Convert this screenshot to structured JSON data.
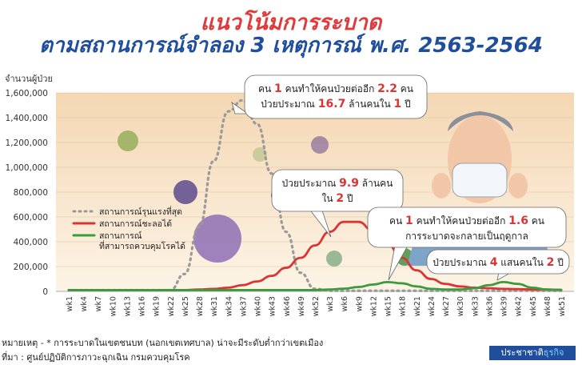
{
  "header": {
    "title_line1": "แนวโน้มการระบาด",
    "title_line2": "ตามสถานการณ์จำลอง 3 เหตุการณ์ พ.ศ. 2563-2564"
  },
  "footer": {
    "note": "หมายเหตุ - * การระบาดในเขตชนบท (นอกเขตเทศบาล) น่าจะมีระดับต่ำกว่าเขตเมือง",
    "source": "ที่มา : ศูนย์ปฏิบัติการภาวะฉุกเฉิน กรมควบคุมโรค",
    "brand_part1": "ประชาชาติ",
    "brand_part2": "ธุรกิจ"
  },
  "colors": {
    "worst": "#9a9a9a",
    "slow": "#d93535",
    "controlled": "#3c9b3c",
    "bg_top": "#f4d7b3",
    "bg_bottom": "#fdf4e6"
  },
  "chart_data": {
    "type": "line",
    "ylabel": "จำนวนผู้ป่วย",
    "ylim": [
      0,
      1600000
    ],
    "yticks": [
      0,
      200000,
      400000,
      600000,
      800000,
      1000000,
      1200000,
      1400000,
      1600000
    ],
    "ytick_labels": [
      "0",
      "200,000",
      "400,000",
      "600,000",
      "800,000",
      "1,000,000",
      "1,200,000",
      "1,400,000",
      "1,600,000"
    ],
    "categories": [
      "wk1",
      "wk4",
      "wk7",
      "wk10",
      "wk13",
      "wk16",
      "wk19",
      "wk22",
      "wk25",
      "wk28",
      "wk31",
      "wk34",
      "wk37",
      "wk40",
      "wk43",
      "wk46",
      "wk49",
      "wk52",
      "wk3",
      "wk6",
      "wk9",
      "wk12",
      "wk15",
      "wk18",
      "wk21",
      "wk24",
      "wk27",
      "wk30",
      "wk33",
      "wk36",
      "wk39",
      "wk42",
      "wk45",
      "wk48",
      "wk51"
    ],
    "series": [
      {
        "name": "สถานการณ์รุนแรงที่สุด",
        "style": "dotted",
        "values": [
          10000,
          10000,
          10000,
          10000,
          10000,
          10000,
          10000,
          10000,
          140000,
          520000,
          1050000,
          1450000,
          1540000,
          1350000,
          950000,
          480000,
          150000,
          20000,
          5000,
          5000,
          5000,
          5000,
          5000,
          5000,
          5000,
          5000,
          5000,
          5000,
          5000,
          5000,
          5000,
          5000,
          5000,
          5000,
          5000
        ]
      },
      {
        "name": "สถานการณ์ชะลอได้",
        "style": "solid",
        "values": [
          10000,
          10000,
          10000,
          10000,
          10000,
          10000,
          10000,
          10000,
          10000,
          15000,
          20000,
          30000,
          50000,
          80000,
          125000,
          190000,
          270000,
          370000,
          480000,
          560000,
          560000,
          490000,
          380000,
          270000,
          170000,
          100000,
          60000,
          40000,
          30000,
          25000,
          20000,
          18000,
          15000,
          15000,
          12000
        ]
      },
      {
        "name": "สถานการณ์\nที่สามารถควบคุมโรคได้",
        "style": "solid",
        "values": [
          10000,
          10000,
          10000,
          10000,
          10000,
          10000,
          10000,
          10000,
          10000,
          10000,
          10000,
          10000,
          10000,
          10000,
          10000,
          10000,
          10000,
          10000,
          15000,
          22000,
          35000,
          55000,
          75000,
          65000,
          40000,
          20000,
          15000,
          15000,
          25000,
          50000,
          75000,
          60000,
          30000,
          15000,
          12000
        ]
      }
    ],
    "legend_position": "left",
    "annotations": [
      {
        "target": "worst",
        "line1": [
          "คน ",
          "1",
          " คนทำให้คนป่วยต่ออีก ",
          "2.2",
          " คน"
        ],
        "line2": [
          "ป่วยประมาณ ",
          "16.7",
          " ล้านคนใน ",
          "1",
          " ปี"
        ]
      },
      {
        "target": "slow-peak",
        "line1": [
          "ป่วยประมาณ ",
          "9.9",
          " ล้านคน"
        ],
        "line2": [
          "ใน ",
          "2",
          " ปี"
        ]
      },
      {
        "target": "slow",
        "line1": [
          "คน ",
          "1",
          " คนทำให้คนป่วยต่ออีก ",
          "1.6",
          " คน"
        ],
        "line2": [
          "การระบาดจะกลายเป็นฤดูกาล"
        ]
      },
      {
        "target": "controlled",
        "line1": [
          "ป่วยประมาณ ",
          "4",
          " แสนคนใน ",
          "2",
          " ปี"
        ]
      }
    ]
  }
}
